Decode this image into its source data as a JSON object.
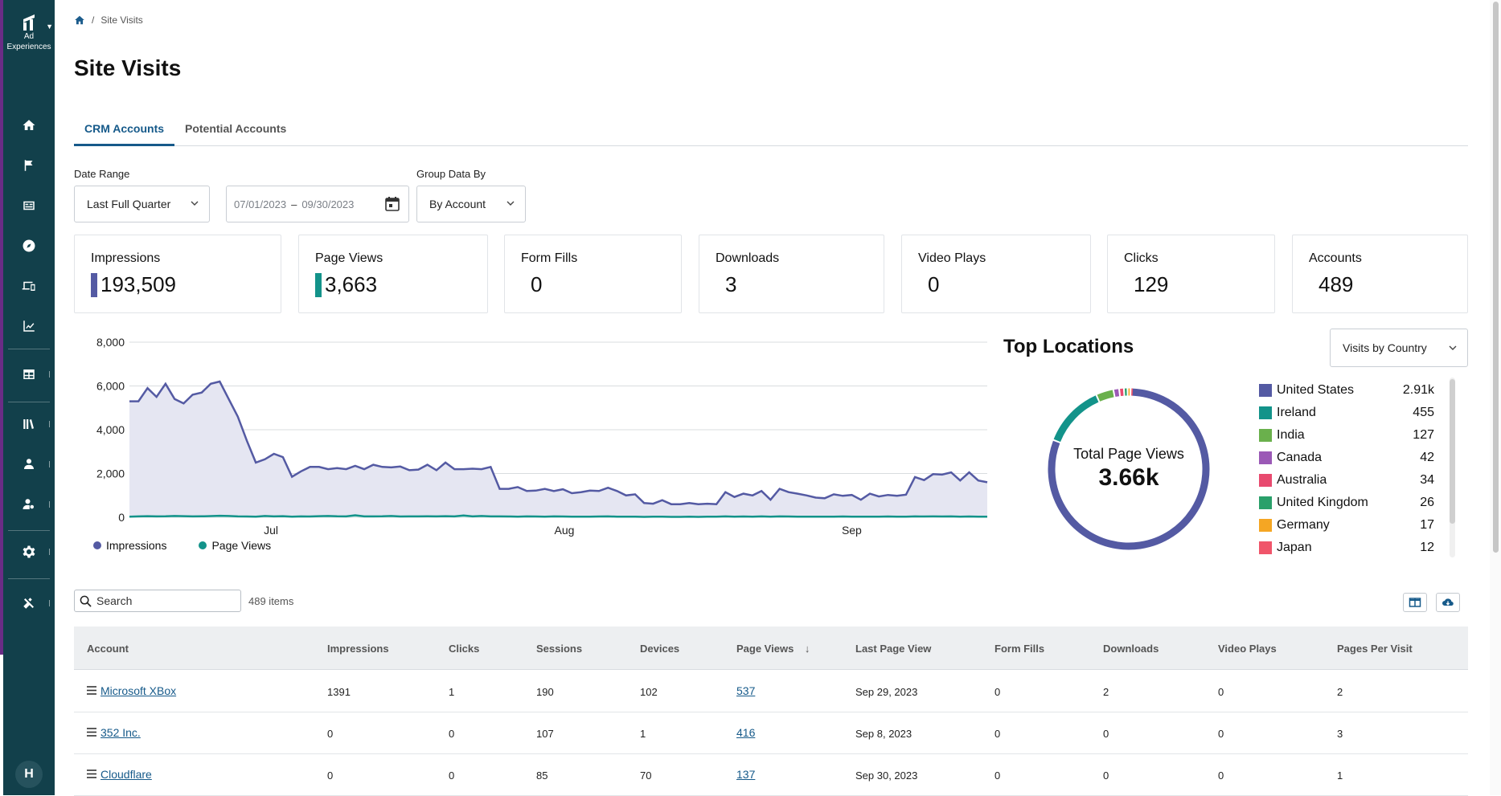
{
  "app": {
    "brand_line1": "Ad",
    "brand_line2": "Experiences",
    "avatar_initial": "H"
  },
  "breadcrumb": {
    "current": "Site Visits"
  },
  "page_title": "Site Visits",
  "tabs": [
    {
      "label": "CRM Accounts",
      "active": true
    },
    {
      "label": "Potential Accounts",
      "active": false
    }
  ],
  "filters": {
    "date_range_label": "Date Range",
    "date_range_value": "Last Full Quarter",
    "start_date": "07/01/2023",
    "end_date": "09/30/2023",
    "group_label": "Group Data By",
    "group_value": "By Account"
  },
  "metrics": [
    {
      "label": "Impressions",
      "value": "193,509",
      "color": "#545aa3"
    },
    {
      "label": "Page Views",
      "value": "3,663",
      "color": "#13938a"
    },
    {
      "label": "Form Fills",
      "value": "0"
    },
    {
      "label": "Downloads",
      "value": "3"
    },
    {
      "label": "Video Plays",
      "value": "0"
    },
    {
      "label": "Clicks",
      "value": "129"
    },
    {
      "label": "Accounts",
      "value": "489"
    }
  ],
  "chart_data": {
    "type": "area",
    "ylim": [
      0,
      8000
    ],
    "y_ticks": [
      "8,000",
      "6,000",
      "4,000",
      "2,000",
      "0"
    ],
    "x_ticks": [
      "Jul",
      "Aug",
      "Sep"
    ],
    "legend": [
      "Impressions",
      "Page Views"
    ],
    "series": [
      {
        "name": "Impressions",
        "color": "#545aa3",
        "values": [
          5300,
          5300,
          5900,
          5500,
          6100,
          5400,
          5200,
          5600,
          5700,
          6100,
          6200,
          5400,
          4600,
          3500,
          2500,
          2650,
          2900,
          2750,
          1850,
          2100,
          2300,
          2300,
          2200,
          2250,
          2200,
          2350,
          2200,
          2400,
          2300,
          2280,
          2320,
          2150,
          2180,
          2400,
          2150,
          2500,
          2200,
          2200,
          2220,
          2200,
          2300,
          1300,
          1300,
          1380,
          1200,
          1220,
          1300,
          1200,
          1280,
          1100,
          1150,
          1220,
          1200,
          1350,
          1200,
          1000,
          1050,
          650,
          620,
          780,
          600,
          600,
          650,
          600,
          620,
          600,
          1150,
          930,
          1080,
          1000,
          1200,
          800,
          1300,
          1150,
          1080,
          1000,
          900,
          870,
          1050,
          980,
          1020,
          800,
          1080,
          950,
          1020,
          980,
          1030,
          1840,
          1700,
          1970,
          1950,
          2050,
          1680,
          2050,
          1680,
          1600
        ]
      },
      {
        "name": "Page Views",
        "color": "#13938a",
        "values": [
          30,
          40,
          50,
          40,
          45,
          60,
          50,
          40,
          45,
          55,
          70,
          60,
          40,
          35,
          30,
          60,
          40,
          50,
          30,
          40,
          35,
          50,
          60,
          45,
          40,
          90,
          40,
          40,
          45,
          60,
          35,
          40,
          40,
          45,
          40,
          50,
          40,
          80,
          40,
          60,
          40,
          40,
          35,
          30,
          40,
          35,
          30,
          40,
          35,
          30,
          25,
          30,
          35,
          40,
          30,
          25,
          30,
          20,
          25,
          30,
          20,
          20,
          25,
          20,
          25,
          30,
          40,
          30,
          35,
          30,
          40,
          30,
          40,
          35,
          30,
          30,
          25,
          30,
          30,
          35,
          30,
          25,
          30,
          30,
          35,
          30,
          30,
          40,
          35,
          40,
          35,
          40,
          30,
          35,
          30,
          30
        ]
      }
    ]
  },
  "locations": {
    "title": "Top Locations",
    "dropdown": "Visits by Country",
    "total_label": "Total Page Views",
    "total_value": "3.66k",
    "items": [
      {
        "name": "United States",
        "value": "2.91k",
        "num": 2910,
        "color": "#545aa3"
      },
      {
        "name": "Ireland",
        "value": "455",
        "num": 455,
        "color": "#13938a"
      },
      {
        "name": "India",
        "value": "127",
        "num": 127,
        "color": "#6ab04c"
      },
      {
        "name": "Canada",
        "value": "42",
        "num": 42,
        "color": "#9b59b6"
      },
      {
        "name": "Australia",
        "value": "34",
        "num": 34,
        "color": "#e84a6f"
      },
      {
        "name": "United Kingdom",
        "value": "26",
        "num": 26,
        "color": "#2aa06a"
      },
      {
        "name": "Germany",
        "value": "17",
        "num": 17,
        "color": "#f5a623"
      },
      {
        "name": "Japan",
        "value": "12",
        "num": 12,
        "color": "#f0556a"
      }
    ]
  },
  "table": {
    "search_placeholder": "Search",
    "items_count": "489 items",
    "columns": [
      "Account",
      "Impressions",
      "Clicks",
      "Sessions",
      "Devices",
      "Page Views",
      "Last Page View",
      "Form Fills",
      "Downloads",
      "Video Plays",
      "Pages Per Visit"
    ],
    "rows": [
      [
        "Microsoft XBox",
        "1391",
        "1",
        "190",
        "102",
        "537",
        "Sep 29, 2023",
        "0",
        "2",
        "0",
        "2"
      ],
      [
        "352 Inc.",
        "0",
        "0",
        "107",
        "1",
        "416",
        "Sep 8, 2023",
        "0",
        "0",
        "0",
        "3"
      ],
      [
        "Cloudflare",
        "0",
        "0",
        "85",
        "70",
        "137",
        "Sep 30, 2023",
        "0",
        "0",
        "0",
        "1"
      ]
    ]
  }
}
